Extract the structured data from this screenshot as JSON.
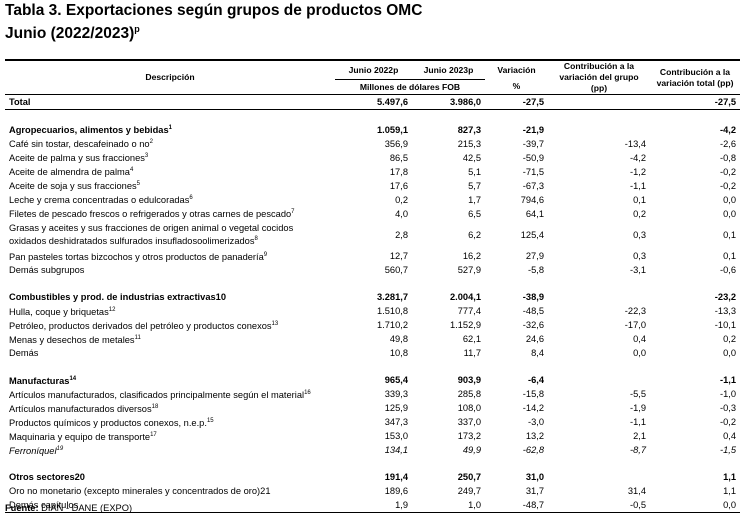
{
  "title": "Tabla 3. Exportaciones según grupos de productos OMC",
  "subtitle": {
    "text": "Junio (2022/2023)",
    "sup": "p"
  },
  "header": {
    "description": "Descripción",
    "jun2022": "Junio 2022p",
    "jun2023": "Junio 2023p",
    "units": "Millones de dólares FOB",
    "variation": "Variación",
    "variation_unit": "%",
    "contrib_group": "Contribución a la variación del grupo (pp)",
    "contrib_total": "Contribución a la variación total (pp)"
  },
  "total": {
    "label": "Total",
    "jun2022": "5.497,6",
    "jun2023": "3.986,0",
    "variation": "-27,5",
    "contrib_total": "-27,5"
  },
  "groups": [
    {
      "rows": [
        {
          "kind": "group",
          "label": "Agropecuarios, alimentos y bebidas",
          "note": "1",
          "jun2022": "1.059,1",
          "jun2023": "827,3",
          "variation": "-21,9",
          "contrib_total": "-4,2"
        },
        {
          "label": "Café sin tostar, descafeinado o no",
          "note": "2",
          "jun2022": "356,9",
          "jun2023": "215,3",
          "variation": "-39,7",
          "contrib_group": "-13,4",
          "contrib_total": "-2,6"
        },
        {
          "label": "Aceite de palma y sus fracciones",
          "note": "3",
          "jun2022": "86,5",
          "jun2023": "42,5",
          "variation": "-50,9",
          "contrib_group": "-4,2",
          "contrib_total": "-0,8"
        },
        {
          "label": "Aceite de almendra de palma",
          "note": "4",
          "jun2022": "17,8",
          "jun2023": "5,1",
          "variation": "-71,5",
          "contrib_group": "-1,2",
          "contrib_total": "-0,2"
        },
        {
          "label": "Aceite de soja y sus fracciones",
          "note": "5",
          "jun2022": "17,6",
          "jun2023": "5,7",
          "variation": "-67,3",
          "contrib_group": "-1,1",
          "contrib_total": "-0,2"
        },
        {
          "label": "Leche y crema concentradas o edulcoradas",
          "note": "6",
          "jun2022": "0,2",
          "jun2023": "1,7",
          "variation": "794,6",
          "contrib_group": "0,1",
          "contrib_total": "0,0"
        },
        {
          "label": "Filetes de pescado frescos o refrigerados y otras carnes de pescado",
          "note": "7",
          "jun2022": "4,0",
          "jun2023": "6,5",
          "variation": "64,1",
          "contrib_group": "0,2",
          "contrib_total": "0,0"
        },
        {
          "label": "Grasas y aceites y sus fracciones de origen animal o vegetal cocidos oxidados deshidratados sulfurados insufladosoolimerizados",
          "note": "8",
          "jun2022": "2,8",
          "jun2023": "6,2",
          "variation": "125,4",
          "contrib_group": "0,3",
          "contrib_total": "0,1"
        },
        {
          "label": "Pan pasteles tortas bizcochos y otros productos de panadería",
          "note": "9",
          "jun2022": "12,7",
          "jun2023": "16,2",
          "variation": "27,9",
          "contrib_group": "0,3",
          "contrib_total": "0,1"
        },
        {
          "label": "Demás subgrupos",
          "jun2022": "560,7",
          "jun2023": "527,9",
          "variation": "-5,8",
          "contrib_group": "-3,1",
          "contrib_total": "-0,6"
        }
      ]
    },
    {
      "rows": [
        {
          "kind": "group",
          "label": "Combustibles y prod. de industrias extractivas10",
          "jun2022": "3.281,7",
          "jun2023": "2.004,1",
          "variation": "-38,9",
          "contrib_total": "-23,2"
        },
        {
          "label": "Hulla, coque y briquetas",
          "note": "12",
          "jun2022": "1.510,8",
          "jun2023": "777,4",
          "variation": "-48,5",
          "contrib_group": "-22,3",
          "contrib_total": "-13,3"
        },
        {
          "label": "Petróleo, productos derivados del petróleo y productos conexos",
          "note": "13",
          "jun2022": "1.710,2",
          "jun2023": "1.152,9",
          "variation": "-32,6",
          "contrib_group": "-17,0",
          "contrib_total": "-10,1"
        },
        {
          "label": "Menas y desechos de metales",
          "note": "11",
          "jun2022": "49,8",
          "jun2023": "62,1",
          "variation": "24,6",
          "contrib_group": "0,4",
          "contrib_total": "0,2"
        },
        {
          "label": "Demás",
          "jun2022": "10,8",
          "jun2023": "11,7",
          "variation": "8,4",
          "contrib_group": "0,0",
          "contrib_total": "0,0"
        }
      ]
    },
    {
      "rows": [
        {
          "kind": "group",
          "label": "Manufacturas",
          "note": "14",
          "jun2022": "965,4",
          "jun2023": "903,9",
          "variation": "-6,4",
          "contrib_total": "-1,1"
        },
        {
          "label": "Artículos manufacturados, clasificados principalmente según el material",
          "note": "16",
          "jun2022": "339,3",
          "jun2023": "285,8",
          "variation": "-15,8",
          "contrib_group": "-5,5",
          "contrib_total": "-1,0"
        },
        {
          "label": "Artículos manufacturados diversos",
          "note": "18",
          "jun2022": "125,9",
          "jun2023": "108,0",
          "variation": "-14,2",
          "contrib_group": "-1,9",
          "contrib_total": "-0,3"
        },
        {
          "label": "Productos químicos y productos conexos, n.e.p.",
          "note": "15",
          "jun2022": "347,3",
          "jun2023": "337,0",
          "variation": "-3,0",
          "contrib_group": "-1,1",
          "contrib_total": "-0,2"
        },
        {
          "label": "Maquinaria y equipo de transporte",
          "note": "17",
          "jun2022": "153,0",
          "jun2023": "173,2",
          "variation": "13,2",
          "contrib_group": "2,1",
          "contrib_total": "0,4"
        },
        {
          "label": "Ferroníquel",
          "note": "19",
          "style": "italic",
          "jun2022": "134,1",
          "jun2023": "49,9",
          "variation": "-62,8",
          "contrib_group": "-8,7",
          "contrib_total": "-1,5"
        }
      ]
    },
    {
      "rows": [
        {
          "kind": "group",
          "label": "Otros sectores20",
          "jun2022": "191,4",
          "jun2023": "250,7",
          "variation": "31,0",
          "contrib_total": "1,1"
        },
        {
          "label": "Oro no monetario (excepto minerales y concentrados de oro)21",
          "jun2022": "189,6",
          "jun2023": "249,7",
          "variation": "31,7",
          "contrib_group": "31,4",
          "contrib_total": "1,1"
        },
        {
          "label": "Demás capítulos",
          "jun2022": "1,9",
          "jun2023": "1,0",
          "variation": "-48,7",
          "contrib_group": "-0,5",
          "contrib_total": "0,0"
        }
      ]
    }
  ],
  "footer": {
    "label": "Fuente:",
    "text": "DIAN - DANE (EXPO)"
  }
}
